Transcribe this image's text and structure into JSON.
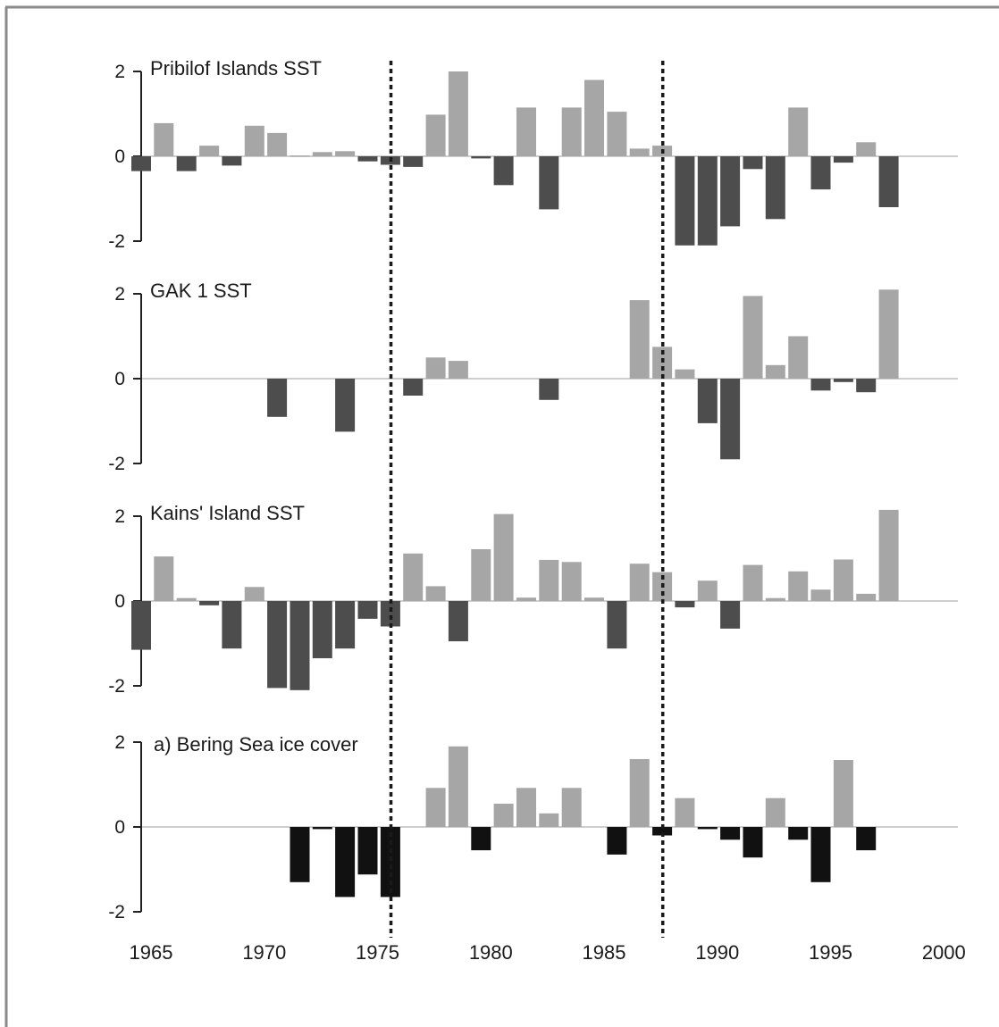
{
  "chart_data": {
    "type": "bar",
    "colors": {
      "positive": "#a6a6a6",
      "negative": "#4d4d4d",
      "negative_ice": "#111111",
      "axis": "#222222",
      "zero_line": "#bdbdbd",
      "regime_line": "#1a1a1a"
    },
    "x_axis": {
      "ticks": [
        "1965",
        "1970",
        "1975",
        "1980",
        "1985",
        "1990",
        "1995",
        "2000"
      ],
      "range": [
        1965,
        2000
      ]
    },
    "y_ticks": [
      "2",
      "0",
      "-2"
    ],
    "ylim": [
      -2,
      2
    ],
    "regime_shift_years": [
      1976.5,
      1988.5
    ],
    "panels": [
      {
        "title": "Pribilof Islands SST",
        "years": [
          1965,
          1966,
          1967,
          1968,
          1969,
          1970,
          1971,
          1972,
          1973,
          1974,
          1975,
          1976,
          1977,
          1978,
          1979,
          1980,
          1981,
          1982,
          1983,
          1984,
          1985,
          1986,
          1987,
          1988,
          1989,
          1990,
          1991,
          1992,
          1993,
          1994,
          1995,
          1996,
          1997,
          1998
        ],
        "values": [
          -0.35,
          0.78,
          -0.35,
          0.25,
          -0.22,
          0.72,
          0.55,
          0.02,
          0.1,
          0.12,
          -0.12,
          -0.2,
          -0.25,
          0.98,
          2.0,
          -0.05,
          -0.68,
          1.15,
          -1.25,
          1.15,
          1.8,
          1.05,
          0.18,
          0.25,
          -2.1,
          -2.1,
          -1.65,
          -0.3,
          -1.48,
          1.15,
          -0.78,
          -0.15,
          0.33,
          -1.2
        ]
      },
      {
        "title": "GAK 1 SST",
        "years": [
          1971,
          1974,
          1977,
          1978,
          1979,
          1983,
          1987,
          1988,
          1989,
          1990,
          1991,
          1992,
          1993,
          1994,
          1995,
          1996,
          1997,
          1998
        ],
        "values": [
          -0.9,
          -1.25,
          -0.4,
          0.5,
          0.42,
          -0.5,
          1.85,
          0.75,
          0.22,
          -1.05,
          -1.9,
          1.95,
          0.32,
          1.0,
          -0.28,
          -0.08,
          -0.32,
          2.1
        ]
      },
      {
        "title": "Kains' Island SST",
        "years": [
          1965,
          1966,
          1967,
          1968,
          1969,
          1970,
          1971,
          1972,
          1973,
          1974,
          1975,
          1976,
          1977,
          1978,
          1979,
          1980,
          1981,
          1982,
          1983,
          1984,
          1985,
          1986,
          1987,
          1988,
          1989,
          1990,
          1991,
          1992,
          1993,
          1994,
          1995,
          1996,
          1997,
          1998
        ],
        "values": [
          -1.15,
          1.05,
          0.07,
          -0.1,
          -1.12,
          0.33,
          -2.05,
          -2.1,
          -1.35,
          -1.12,
          -0.42,
          -0.6,
          1.12,
          0.35,
          -0.95,
          1.22,
          2.05,
          0.08,
          0.97,
          0.92,
          0.08,
          -1.12,
          0.88,
          0.68,
          -0.15,
          0.48,
          -0.65,
          0.85,
          0.07,
          0.7,
          0.27,
          0.98,
          0.17,
          2.15
        ]
      },
      {
        "title": "a) Bering Sea ice cover",
        "years": [
          1972,
          1973,
          1974,
          1975,
          1976,
          1978,
          1979,
          1980,
          1981,
          1982,
          1983,
          1984,
          1986,
          1987,
          1988,
          1989,
          1990,
          1991,
          1992,
          1993,
          1994,
          1995,
          1996,
          1997
        ],
        "values": [
          -1.3,
          -0.05,
          -1.65,
          -1.12,
          -1.65,
          0.92,
          1.9,
          -0.55,
          0.55,
          0.92,
          0.32,
          0.92,
          -0.65,
          1.6,
          -0.2,
          0.68,
          -0.05,
          -0.3,
          -0.72,
          0.68,
          -0.3,
          -1.3,
          1.58,
          -0.55
        ]
      }
    ]
  }
}
